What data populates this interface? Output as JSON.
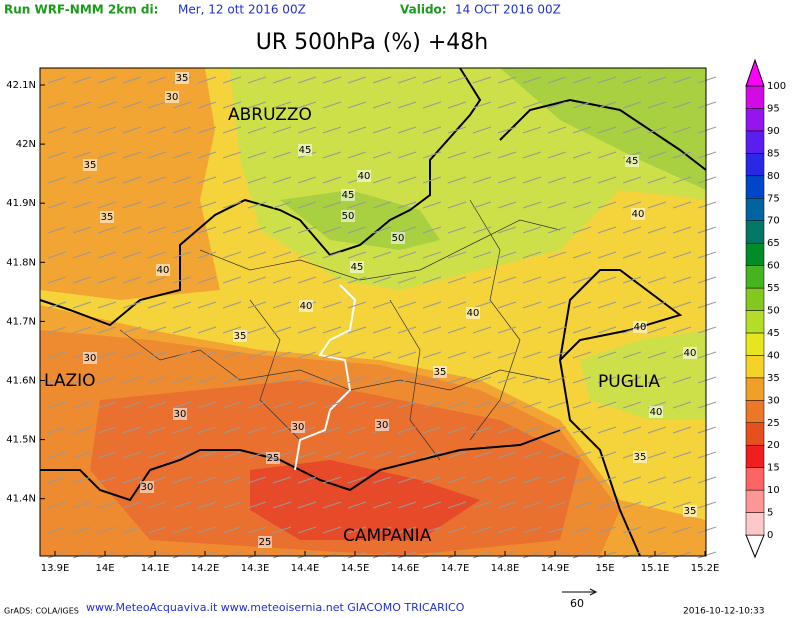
{
  "header": {
    "run_label": "Run WRF-NMM 2km di:",
    "run_date": "Mer, 12 ott 2016 00Z",
    "valid_label": "Valido:",
    "valid_date": "14 OCT 2016 00Z"
  },
  "title": "UR 500hPa (%) +48h",
  "y_axis_labels": [
    "42.1N",
    "42N",
    "41.9N",
    "41.8N",
    "41.7N",
    "41.6N",
    "41.5N",
    "41.4N"
  ],
  "x_axis_labels": [
    "13.9E",
    "14E",
    "14.1E",
    "14.2E",
    "14.3E",
    "14.4E",
    "14.5E",
    "14.6E",
    "14.7E",
    "14.8E",
    "14.9E",
    "15E",
    "15.1E",
    "15.2E"
  ],
  "regions": [
    "ABRUZZO",
    "LAZIO",
    "PUGLIA",
    "CAMPANIA"
  ],
  "contour_labels": [
    35,
    30,
    35,
    35,
    40,
    45,
    40,
    45,
    50,
    50,
    45,
    40,
    40,
    35,
    35,
    30,
    30,
    30,
    30,
    25,
    30,
    25,
    45,
    40,
    40,
    40,
    40,
    35,
    35
  ],
  "colorbar": {
    "levels": [
      0,
      5,
      10,
      15,
      20,
      25,
      30,
      35,
      40,
      45,
      50,
      55,
      60,
      65,
      70,
      75,
      80,
      85,
      90,
      95,
      100
    ],
    "colors": [
      "#ffffff",
      "#ffc8c8",
      "#ff9696",
      "#ff6464",
      "#f01e1e",
      "#e6501e",
      "#eb7828",
      "#f0a028",
      "#f5d228",
      "#e6e61e",
      "#b4dc28",
      "#82c81e",
      "#46b41e",
      "#008c28",
      "#007864",
      "#0064a0",
      "#0046c8",
      "#2828e6",
      "#5a1ef0",
      "#9614f0",
      "#d20ae6",
      "#ff00ff"
    ]
  },
  "footer": {
    "credit": "GrADS: COLA/IGES",
    "sites": "www.MeteoAcquaviva.it www.meteoisernia.net GIACOMO TRICARICO",
    "vector_scale": "60",
    "timestamp": "2016-10-12-10:33"
  }
}
